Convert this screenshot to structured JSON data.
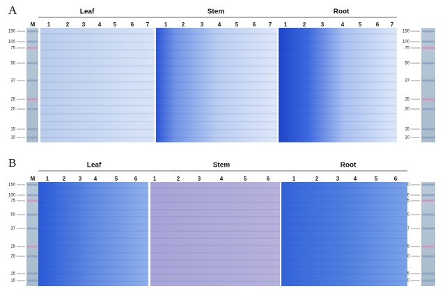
{
  "panels": [
    {
      "label": "A",
      "marker": "M",
      "marker_sizes": [
        150,
        100,
        75,
        50,
        37,
        25,
        20,
        15,
        10
      ],
      "groups": [
        {
          "name": "Leaf",
          "lanes": [
            1,
            2,
            3,
            4,
            5,
            6,
            7
          ]
        },
        {
          "name": "Stem",
          "lanes": [
            1,
            2,
            3,
            4,
            5,
            6,
            7
          ]
        },
        {
          "name": "Root",
          "lanes": [
            1,
            2,
            3,
            4,
            5,
            6,
            7
          ]
        }
      ]
    },
    {
      "label": "B",
      "marker": "M",
      "marker_sizes": [
        150,
        100,
        75,
        50,
        37,
        25,
        20,
        15,
        10
      ],
      "groups": [
        {
          "name": "Leaf",
          "lanes": [
            1,
            2,
            3,
            4,
            5,
            6
          ]
        },
        {
          "name": "Stem",
          "lanes": [
            1,
            2,
            3,
            4,
            5,
            6
          ]
        },
        {
          "name": "Root",
          "lanes": [
            1,
            2,
            3,
            4,
            5,
            6
          ]
        }
      ]
    }
  ]
}
